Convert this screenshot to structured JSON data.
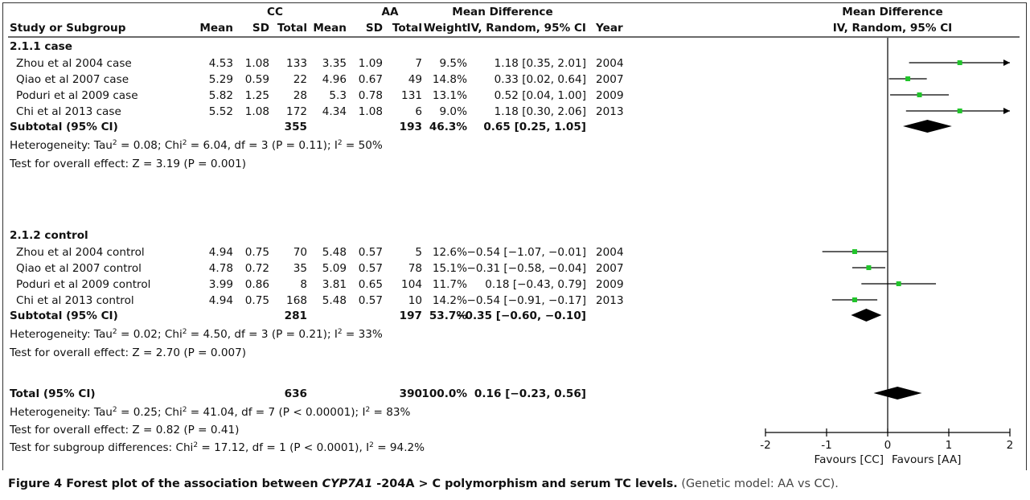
{
  "chart_data": {
    "type": "forest",
    "header": {
      "group1": "CC",
      "group2": "AA",
      "study": "Study or Subgroup",
      "mean": "Mean",
      "sd": "SD",
      "total": "Total",
      "weight": "Weight",
      "md_title": "Mean Difference",
      "md_sub": "IV, Random, 95% CI",
      "year": "Year",
      "plot_title": "Mean Difference",
      "plot_sub": "IV, Random, 95% CI"
    },
    "subgroups": [
      {
        "title": "2.1.1 case",
        "studies": [
          {
            "name": "Zhou et al 2004 case",
            "m1": "4.53",
            "sd1": "1.08",
            "n1": "133",
            "m2": "3.35",
            "sd2": "1.09",
            "n2": "7",
            "weight": "9.5%",
            "ci_text": "1.18 [0.35, 2.01]",
            "year": "2004",
            "md": 1.18,
            "lo": 0.35,
            "hi": 2.01
          },
          {
            "name": "Qiao et al 2007 case",
            "m1": "5.29",
            "sd1": "0.59",
            "n1": "22",
            "m2": "4.96",
            "sd2": "0.67",
            "n2": "49",
            "weight": "14.8%",
            "ci_text": "0.33 [0.02, 0.64]",
            "year": "2007",
            "md": 0.33,
            "lo": 0.02,
            "hi": 0.64
          },
          {
            "name": "Poduri et al 2009 case",
            "m1": "5.82",
            "sd1": "1.25",
            "n1": "28",
            "m2": "5.3",
            "sd2": "0.78",
            "n2": "131",
            "weight": "13.1%",
            "ci_text": "0.52 [0.04, 1.00]",
            "year": "2009",
            "md": 0.52,
            "lo": 0.04,
            "hi": 1.0
          },
          {
            "name": "Chi et al 2013 case",
            "m1": "5.52",
            "sd1": "1.08",
            "n1": "172",
            "m2": "4.34",
            "sd2": "1.08",
            "n2": "6",
            "weight": "9.0%",
            "ci_text": "1.18 [0.30, 2.06]",
            "year": "2013",
            "md": 1.18,
            "lo": 0.3,
            "hi": 2.06
          }
        ],
        "subtotal": {
          "label": "Subtotal (95% CI)",
          "n1": "355",
          "n2": "193",
          "weight": "46.3%",
          "ci_text": "0.65 [0.25, 1.05]",
          "md": 0.65,
          "lo": 0.25,
          "hi": 1.05
        },
        "heterogeneity": "Heterogeneity: Tau² = 0.08; Chi² = 6.04, df = 3 (P = 0.11); I² = 50%",
        "overall": "Test for overall effect: Z = 3.19 (P = 0.001)"
      },
      {
        "title": "2.1.2 control",
        "studies": [
          {
            "name": "Zhou et al 2004 control",
            "m1": "4.94",
            "sd1": "0.75",
            "n1": "70",
            "m2": "5.48",
            "sd2": "0.57",
            "n2": "5",
            "weight": "12.6%",
            "ci_text": "−0.54 [−1.07, −0.01]",
            "year": "2004",
            "md": -0.54,
            "lo": -1.07,
            "hi": -0.01
          },
          {
            "name": "Qiao et al 2007 control",
            "m1": "4.78",
            "sd1": "0.72",
            "n1": "35",
            "m2": "5.09",
            "sd2": "0.57",
            "n2": "78",
            "weight": "15.1%",
            "ci_text": "−0.31 [−0.58, −0.04]",
            "year": "2007",
            "md": -0.31,
            "lo": -0.58,
            "hi": -0.04
          },
          {
            "name": "Poduri et al 2009 control",
            "m1": "3.99",
            "sd1": "0.86",
            "n1": "8",
            "m2": "3.81",
            "sd2": "0.65",
            "n2": "104",
            "weight": "11.7%",
            "ci_text": "0.18 [−0.43, 0.79]",
            "year": "2009",
            "md": 0.18,
            "lo": -0.43,
            "hi": 0.79
          },
          {
            "name": "Chi et al 2013 control",
            "m1": "4.94",
            "sd1": "0.75",
            "n1": "168",
            "m2": "5.48",
            "sd2": "0.57",
            "n2": "10",
            "weight": "14.2%",
            "ci_text": "−0.54 [−0.91, −0.17]",
            "year": "2013",
            "md": -0.54,
            "lo": -0.91,
            "hi": -0.17
          }
        ],
        "subtotal": {
          "label": "Subtotal (95% CI)",
          "n1": "281",
          "n2": "197",
          "weight": "53.7%",
          "ci_text": "−0.35 [−0.60, −0.10]",
          "md": -0.35,
          "lo": -0.6,
          "hi": -0.1
        },
        "heterogeneity": "Heterogeneity: Tau² = 0.02; Chi² = 4.50, df = 3 (P = 0.21); I² = 33%",
        "overall": "Test for overall effect: Z = 2.70 (P = 0.007)"
      }
    ],
    "total": {
      "label": "Total (95% CI)",
      "n1": "636",
      "n2": "390",
      "weight": "100.0%",
      "ci_text": "0.16 [−0.23, 0.56]",
      "md": 0.16,
      "lo": -0.23,
      "hi": 0.56
    },
    "footer": [
      "Heterogeneity: Tau² = 0.25; Chi² = 41.04, df = 7 (P < 0.00001); I² = 83%",
      "Test for overall effect: Z = 0.82 (P = 0.41)",
      "Test for subgroup differences: Chi² = 17.12, df = 1 (P < 0.0001), I² = 94.2%"
    ],
    "axis": {
      "xlim": [
        -2,
        2
      ],
      "ticks": [
        -2,
        -1,
        0,
        1,
        2
      ],
      "tick_labels": [
        "-2",
        "-1",
        "0",
        "1",
        "2"
      ],
      "favours_left": "Favours [CC]",
      "favours_right": "Favours [AA]"
    },
    "colors": {
      "marker": "#21c42b",
      "diamond": "#000000",
      "line": "#000000"
    }
  },
  "caption": {
    "label": "Figure 4",
    "title_pre": " Forest plot of the association between ",
    "gene": "CYP7A1",
    "title_post": " -204A > C polymorphism and serum TC levels.",
    "note": " (Genetic model: AA vs CC)."
  }
}
